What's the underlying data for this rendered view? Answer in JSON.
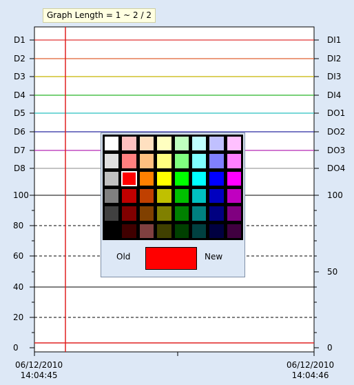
{
  "graph": {
    "title": "Graph Length = 1 ~ 2 / 2",
    "left_digital_labels": [
      "D1",
      "D2",
      "D3",
      "D4",
      "D5",
      "D6",
      "D7",
      "D8"
    ],
    "right_digital_labels": [
      "DI1",
      "DI2",
      "DI3",
      "DI4",
      "DO1",
      "DO2",
      "DO3",
      "DO4"
    ],
    "digital_line_colors": [
      "#e03030",
      "#e06030",
      "#c8b400",
      "#28b428",
      "#28c0c0",
      "#2828a0",
      "#b428b4",
      "#a0a0a0"
    ],
    "left_axis_ticks": [
      "100",
      "80",
      "60",
      "40",
      "20",
      "0"
    ],
    "right_axis_ticks": [
      "100",
      "50",
      "0"
    ],
    "x_labels": [
      {
        "date": "06/12/2010",
        "time": "14:04:45"
      },
      {
        "date": "06/12/2010",
        "time": "14:04:46"
      }
    ]
  },
  "palette": {
    "rows": [
      [
        "#ffffff",
        "#ffc0c0",
        "#ffe0c0",
        "#ffffc0",
        "#c0ffc0",
        "#c0ffff",
        "#c0c0ff",
        "#ffc0ff"
      ],
      [
        "#e0e0e0",
        "#ff8080",
        "#ffc080",
        "#ffff80",
        "#80ff80",
        "#80ffff",
        "#8080ff",
        "#ff80ff"
      ],
      [
        "#c0c0c0",
        "#ff0000",
        "#ff8000",
        "#ffff00",
        "#00ff00",
        "#00ffff",
        "#0000ff",
        "#ff00ff"
      ],
      [
        "#808080",
        "#c00000",
        "#c04000",
        "#c0c000",
        "#00c000",
        "#00c0c0",
        "#0000c0",
        "#c000c0"
      ],
      [
        "#404040",
        "#800000",
        "#804000",
        "#808000",
        "#008000",
        "#008080",
        "#000080",
        "#800080"
      ],
      [
        "#000000",
        "#400000",
        "#804040",
        "#404000",
        "#004000",
        "#004040",
        "#000040",
        "#400040"
      ]
    ],
    "selected": "2-1",
    "old_label": "Old",
    "new_label": "New",
    "preview_color": "#ff0000"
  }
}
